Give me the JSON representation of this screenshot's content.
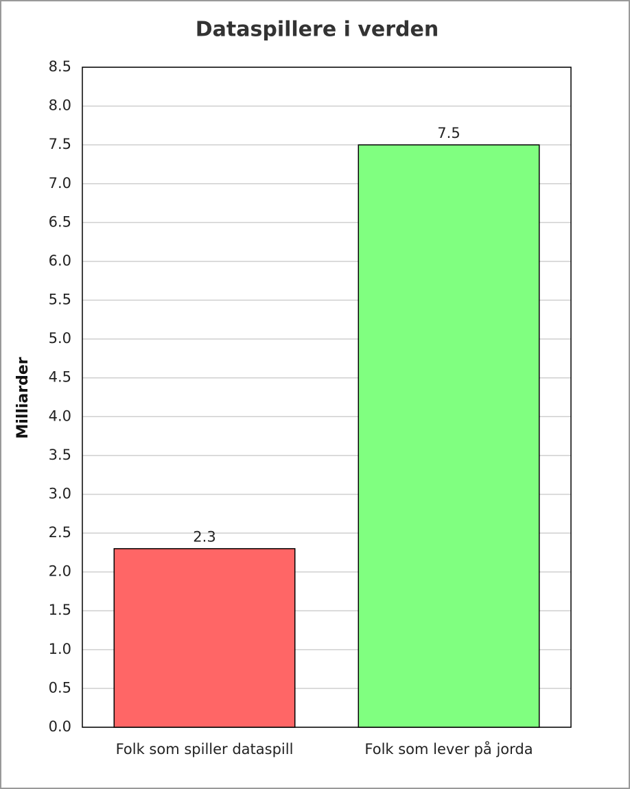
{
  "chart_data": {
    "type": "bar",
    "title": "Dataspillere i verden",
    "y_label": "Milliarder",
    "categories": [
      "Folk som spiller dataspill",
      "Folk som lever på jorda"
    ],
    "values": [
      2.3,
      7.5
    ],
    "colors": [
      "#ff6666",
      "#80ff80"
    ],
    "ylim": [
      0,
      8.5
    ],
    "yticks": [
      {
        "value": 0,
        "label": "0.0"
      },
      0.5,
      {
        "value": 1,
        "label": "1.0"
      },
      1.5,
      {
        "value": 2,
        "label": "2.0"
      },
      2.5,
      {
        "value": 3,
        "label": "3.0"
      },
      3.5,
      {
        "value": 4,
        "label": "4.0"
      },
      4.5,
      {
        "value": 5,
        "label": "5.0"
      },
      5.5,
      {
        "value": 6,
        "label": "6.0"
      },
      6.5,
      {
        "value": 7,
        "label": "7.0"
      },
      7.5,
      {
        "value": 8,
        "label": "8.0"
      },
      8.5
    ],
    "grid": true
  }
}
